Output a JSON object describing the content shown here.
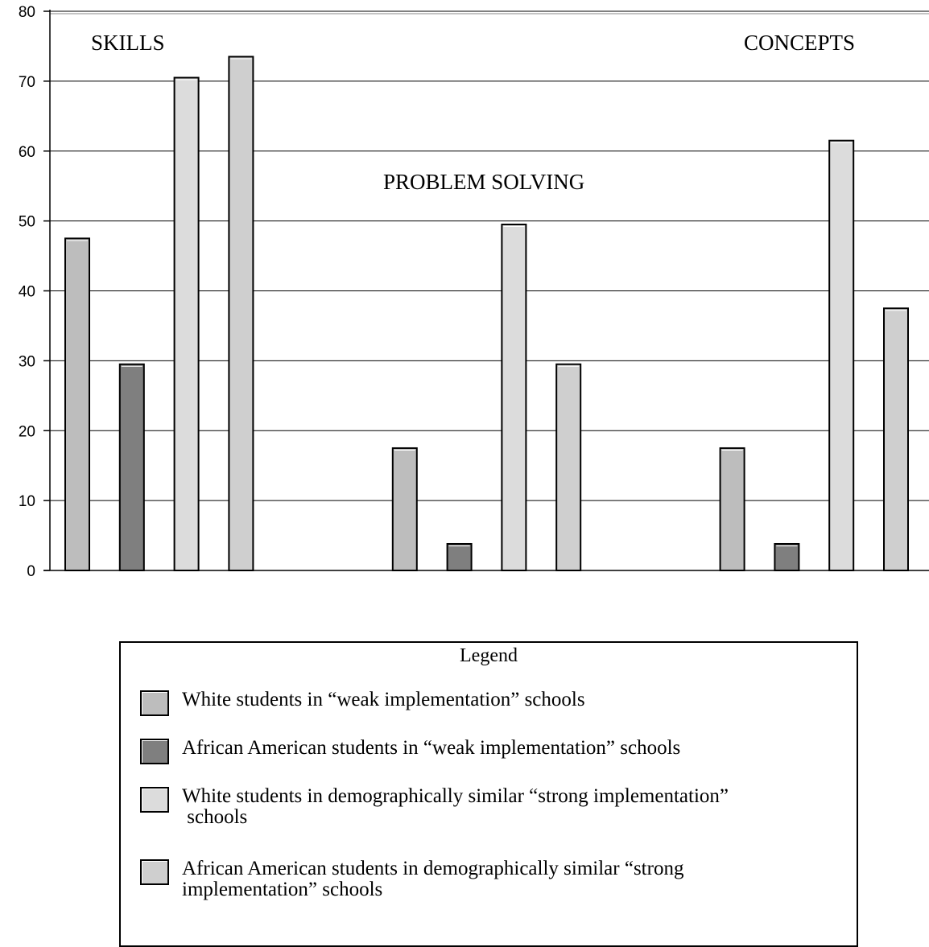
{
  "chart_data": {
    "type": "bar",
    "ylim": [
      0,
      80
    ],
    "yticks": [
      "0",
      "10",
      "20",
      "30",
      "40",
      "50",
      "60",
      "70",
      "80"
    ],
    "grid": true,
    "xlabel": "",
    "ylabel": "",
    "groups": [
      "SKILLS",
      "PROBLEM SOLVING",
      "CONCEPTS"
    ],
    "series": [
      {
        "name": "White students in “weak implementation” schools",
        "color": "#bdbdbd",
        "values": [
          47.5,
          17.5,
          17.5
        ]
      },
      {
        "name": "African American students in “weak implementation” schools",
        "color": "#7f7f7f",
        "values": [
          29.5,
          3.8,
          3.8
        ]
      },
      {
        "name": "White students in demographically similar “strong implementation” schools",
        "color": "#dcdcdc",
        "values": [
          70.5,
          49.5,
          61.5
        ]
      },
      {
        "name": "African American students in demographically similar “strong implementation” schools",
        "color": "#cfcfcf",
        "values": [
          73.5,
          29.5,
          37.5
        ]
      }
    ],
    "legend": {
      "title": "Legend",
      "placement": "bottom"
    }
  },
  "legend_items": [
    {
      "line1": "White students in “weak implementation” schools",
      "line2": ""
    },
    {
      "line1": "African American students in “weak implementation” schools",
      "line2": ""
    },
    {
      "line1": "White students in demographically similar “strong implementation”",
      "line2": " schools"
    },
    {
      "line1": "African American students in demographically similar “strong",
      "line2": "implementation” schools"
    }
  ]
}
